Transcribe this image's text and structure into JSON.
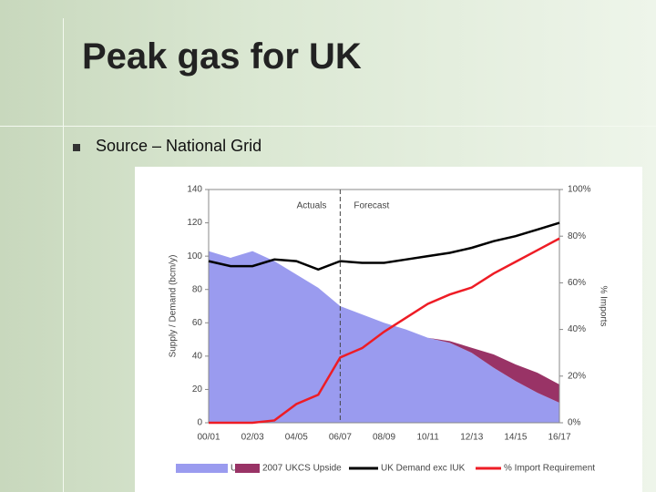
{
  "title": "Peak gas for UK",
  "bullet": "Source – National Grid",
  "chart_data": {
    "type": "stacked-area-line",
    "y_label": "Supply / Demand (bcm/y)",
    "y2_label": "% Imports",
    "annotations": [
      "Actuals",
      "Forecast"
    ],
    "categories": [
      "00/01",
      null,
      "02/03",
      null,
      "04/05",
      null,
      "06/07",
      null,
      "08/09",
      null,
      "10/11",
      null,
      "12/13",
      null,
      "14/15",
      null,
      "16/17"
    ],
    "ylim": [
      0,
      140
    ],
    "yticks": [
      0,
      20,
      40,
      60,
      80,
      100,
      120,
      140
    ],
    "y2lim": [
      0,
      100
    ],
    "y2ticks": [
      {
        "value": 0,
        "label": "0%"
      },
      {
        "value": 20,
        "label": "20%"
      },
      {
        "value": 40,
        "label": "40%"
      },
      {
        "value": 60,
        "label": "60%"
      },
      {
        "value": 80,
        "label": "80%"
      },
      {
        "value": 100,
        "label": "100%"
      }
    ],
    "grid": false,
    "legend": "bottom",
    "series": [
      {
        "name": "UKCS",
        "kind": "area",
        "color": "#9a9bef",
        "values": [
          103,
          99,
          103,
          97,
          89,
          81,
          70,
          65,
          60,
          56,
          51,
          48,
          42,
          33,
          25,
          18,
          12
        ]
      },
      {
        "name": "2007 UKCS Upside",
        "kind": "stacked-area",
        "color": "#993366",
        "values": [
          0,
          0,
          0,
          0,
          0,
          0,
          0,
          0,
          0,
          0,
          0,
          1,
          3,
          8,
          10,
          12,
          11
        ]
      },
      {
        "name": "UK Demand exc IUK",
        "kind": "line",
        "color": "#000000",
        "values": [
          97,
          94,
          94,
          98,
          97,
          92,
          97,
          96,
          96,
          98,
          100,
          102,
          105,
          109,
          112,
          116,
          120
        ]
      },
      {
        "name": "% Import Requirement",
        "kind": "line",
        "axis": "y2",
        "color": "#ee1c25",
        "values": [
          0,
          0,
          0,
          1,
          8,
          12,
          28,
          32,
          39,
          45,
          51,
          55,
          58,
          64,
          69,
          74,
          79
        ]
      }
    ]
  }
}
